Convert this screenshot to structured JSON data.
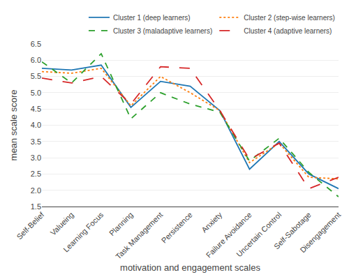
{
  "chart_data": {
    "type": "line",
    "categories": [
      "Self-Belief",
      "Valueing",
      "Learning Focus",
      "Planning",
      "Task Management",
      "Persistence",
      "Anxiety",
      "Failure Avoidance",
      "Uncertain Control",
      "Self-Sabotage",
      "Disengagement"
    ],
    "series": [
      {
        "name": "Cluster 1 (deep learners)",
        "line_style": "solid",
        "values": [
          5.75,
          5.7,
          5.85,
          4.55,
          5.35,
          5.2,
          4.45,
          2.65,
          3.5,
          2.5,
          2.05
        ]
      },
      {
        "name": "Cluster 2 (step-wise learners)",
        "line_style": "dotted",
        "values": [
          5.65,
          5.6,
          5.75,
          4.6,
          5.5,
          5.0,
          4.45,
          2.85,
          3.45,
          2.4,
          2.35
        ]
      },
      {
        "name": "Cluster 3 (maladaptive learners)",
        "line_style": "dashed",
        "values": [
          5.95,
          5.3,
          6.2,
          4.2,
          5.0,
          4.65,
          4.4,
          2.9,
          3.6,
          2.55,
          1.8
        ]
      },
      {
        "name": "Cluster 4 (adaptive learners)",
        "line_style": "longdash",
        "values": [
          5.45,
          5.3,
          5.5,
          4.65,
          5.8,
          5.75,
          4.45,
          2.95,
          3.45,
          2.05,
          2.4
        ]
      }
    ],
    "xlabel": "motivation and engagement scales",
    "ylabel": "mean scale score",
    "ylim": [
      1.5,
      6.5
    ],
    "yticks": [
      1.5,
      {
        "value": 2,
        "label": "2.0"
      },
      2.5,
      {
        "value": 3,
        "label": "3.0"
      },
      3.5,
      {
        "value": 4,
        "label": "4.0"
      },
      4.5,
      {
        "value": 5,
        "label": "5.0"
      },
      5.5,
      {
        "value": 6,
        "label": "6.0"
      },
      6.5
    ],
    "grid": true,
    "legend": "upper right"
  }
}
